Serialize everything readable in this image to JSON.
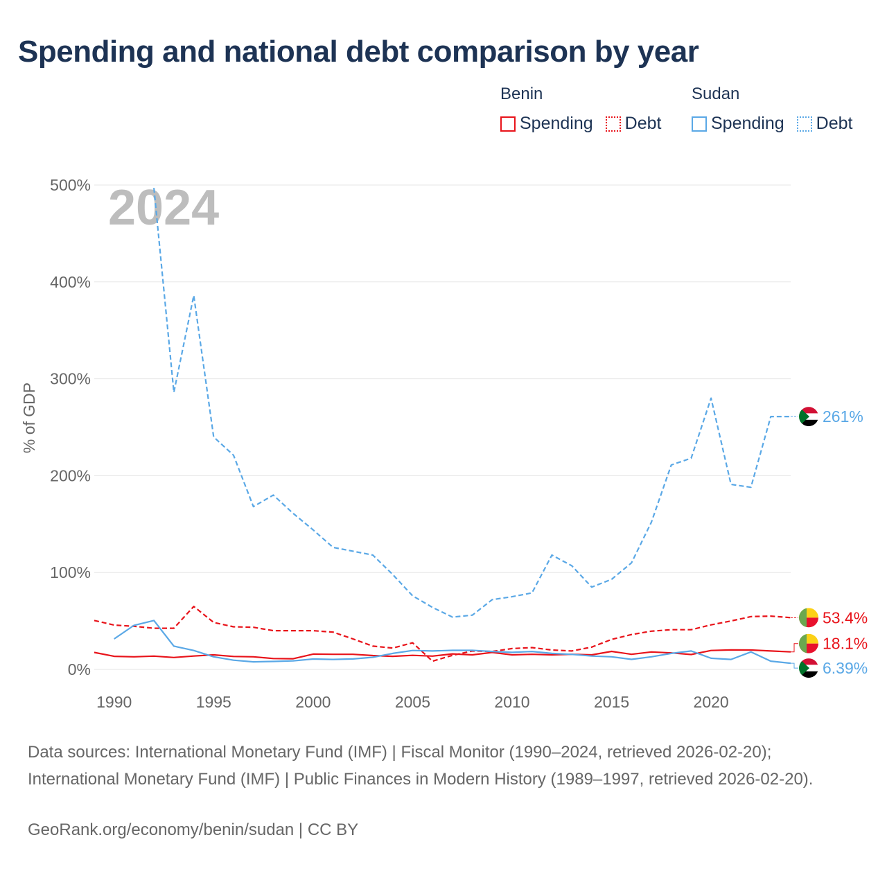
{
  "title": "Spending and national debt comparison by year",
  "legend": {
    "groups": [
      {
        "name": "Benin",
        "items": [
          {
            "label": "Spending",
            "style": "solid",
            "color": "#e8131a"
          },
          {
            "label": "Debt",
            "style": "dotted",
            "color": "#e8131a"
          }
        ]
      },
      {
        "name": "Sudan",
        "items": [
          {
            "label": "Spending",
            "style": "solid",
            "color": "#5aa8e6"
          },
          {
            "label": "Debt",
            "style": "dotted",
            "color": "#5aa8e6"
          }
        ]
      }
    ]
  },
  "chart_data": {
    "type": "line",
    "year_watermark": "2024",
    "ylabel": "% of GDP",
    "xlabel": "",
    "ylim": [
      0,
      500
    ],
    "xlim": [
      1989,
      2024
    ],
    "yticks": [
      0,
      100,
      200,
      300,
      400,
      500
    ],
    "ytick_labels": [
      "0%",
      "100%",
      "200%",
      "300%",
      "400%",
      "500%"
    ],
    "xticks": [
      1990,
      1995,
      2000,
      2005,
      2010,
      2015,
      2020
    ],
    "xtick_labels": [
      "1990",
      "1995",
      "2000",
      "2005",
      "2010",
      "2015",
      "2020"
    ],
    "grid": true,
    "series": [
      {
        "name": "Benin Spending",
        "country": "Benin",
        "metric": "Spending",
        "color": "#e8131a",
        "dash": "solid",
        "end_label": "18.1%",
        "points": [
          [
            1989,
            17.5
          ],
          [
            1990,
            13.5
          ],
          [
            1991,
            13
          ],
          [
            1992,
            13.7
          ],
          [
            1993,
            12.3
          ],
          [
            1994,
            13.8
          ],
          [
            1995,
            15
          ],
          [
            1996,
            13.4
          ],
          [
            1997,
            13
          ],
          [
            1998,
            11.2
          ],
          [
            1999,
            11
          ],
          [
            2000,
            15.8
          ],
          [
            2001,
            15.6
          ],
          [
            2002,
            15.6
          ],
          [
            2003,
            14.3
          ],
          [
            2004,
            13.5
          ],
          [
            2005,
            14.5
          ],
          [
            2006,
            13.7
          ],
          [
            2007,
            16
          ],
          [
            2008,
            15
          ],
          [
            2009,
            17.5
          ],
          [
            2010,
            15
          ],
          [
            2011,
            15.6
          ],
          [
            2012,
            15
          ],
          [
            2013,
            15.6
          ],
          [
            2014,
            15
          ],
          [
            2015,
            18.6
          ],
          [
            2016,
            15.6
          ],
          [
            2017,
            18
          ],
          [
            2018,
            17
          ],
          [
            2019,
            15.4
          ],
          [
            2020,
            19.5
          ],
          [
            2021,
            20.1
          ],
          [
            2022,
            20
          ],
          [
            2023,
            19
          ],
          [
            2024,
            18.1
          ]
        ]
      },
      {
        "name": "Benin Debt",
        "country": "Benin",
        "metric": "Debt",
        "color": "#e8131a",
        "dash": "dashed",
        "end_label": "53.4%",
        "points": [
          [
            1989,
            50.5
          ],
          [
            1990,
            45.8
          ],
          [
            1991,
            44.5
          ],
          [
            1992,
            42.5
          ],
          [
            1993,
            42.5
          ],
          [
            1994,
            65
          ],
          [
            1995,
            48.5
          ],
          [
            1996,
            44
          ],
          [
            1997,
            43.5
          ],
          [
            1998,
            40
          ],
          [
            1999,
            40
          ],
          [
            2000,
            40
          ],
          [
            2001,
            38.5
          ],
          [
            2002,
            31.5
          ],
          [
            2003,
            24
          ],
          [
            2004,
            22
          ],
          [
            2005,
            27.5
          ],
          [
            2006,
            8.5
          ],
          [
            2007,
            14.5
          ],
          [
            2008,
            19
          ],
          [
            2009,
            18.5
          ],
          [
            2010,
            21.5
          ],
          [
            2011,
            22.5
          ],
          [
            2012,
            20
          ],
          [
            2013,
            19
          ],
          [
            2014,
            23
          ],
          [
            2015,
            31
          ],
          [
            2016,
            36
          ],
          [
            2017,
            39.5
          ],
          [
            2018,
            41
          ],
          [
            2019,
            41
          ],
          [
            2020,
            46
          ],
          [
            2021,
            50
          ],
          [
            2022,
            54.5
          ],
          [
            2023,
            55
          ],
          [
            2024,
            53.4
          ]
        ]
      },
      {
        "name": "Sudan Spending",
        "country": "Sudan",
        "metric": "Spending",
        "color": "#5aa8e6",
        "dash": "solid",
        "end_label": "6.39%",
        "points": [
          [
            1990,
            31.5
          ],
          [
            1991,
            45.5
          ],
          [
            1992,
            50.5
          ],
          [
            1993,
            24
          ],
          [
            1994,
            19.5
          ],
          [
            1995,
            13
          ],
          [
            1996,
            9.5
          ],
          [
            1997,
            7.8
          ],
          [
            1998,
            8.2
          ],
          [
            1999,
            8.8
          ],
          [
            2000,
            10.7
          ],
          [
            2001,
            10.3
          ],
          [
            2002,
            10.8
          ],
          [
            2003,
            12.5
          ],
          [
            2004,
            16.5
          ],
          [
            2005,
            19.5
          ],
          [
            2006,
            19
          ],
          [
            2007,
            19.7
          ],
          [
            2008,
            19.7
          ],
          [
            2009,
            18.5
          ],
          [
            2010,
            17.6
          ],
          [
            2011,
            18.5
          ],
          [
            2012,
            16.5
          ],
          [
            2013,
            15.5
          ],
          [
            2014,
            13.8
          ],
          [
            2015,
            13
          ],
          [
            2016,
            10.4
          ],
          [
            2017,
            13
          ],
          [
            2018,
            16.5
          ],
          [
            2019,
            19
          ],
          [
            2020,
            11.5
          ],
          [
            2021,
            10.3
          ],
          [
            2022,
            18
          ],
          [
            2023,
            8.5
          ],
          [
            2024,
            6.39
          ]
        ]
      },
      {
        "name": "Sudan Debt",
        "country": "Sudan",
        "metric": "Debt",
        "color": "#5aa8e6",
        "dash": "dashed",
        "end_label": "261%",
        "points": [
          [
            1992,
            497
          ],
          [
            1993,
            286
          ],
          [
            1994,
            386
          ],
          [
            1995,
            240
          ],
          [
            1996,
            221
          ],
          [
            1997,
            168
          ],
          [
            1998,
            180
          ],
          [
            1999,
            161
          ],
          [
            2000,
            144
          ],
          [
            2001,
            126
          ],
          [
            2002,
            122
          ],
          [
            2003,
            118
          ],
          [
            2004,
            98
          ],
          [
            2005,
            76
          ],
          [
            2006,
            64
          ],
          [
            2007,
            54
          ],
          [
            2008,
            56
          ],
          [
            2009,
            72
          ],
          [
            2010,
            75
          ],
          [
            2011,
            79
          ],
          [
            2012,
            118
          ],
          [
            2013,
            107
          ],
          [
            2014,
            85
          ],
          [
            2015,
            93
          ],
          [
            2016,
            110
          ],
          [
            2017,
            152
          ],
          [
            2018,
            211
          ],
          [
            2019,
            218
          ],
          [
            2020,
            280
          ],
          [
            2021,
            191
          ],
          [
            2022,
            188
          ],
          [
            2023,
            261
          ],
          [
            2024,
            261
          ]
        ]
      }
    ]
  },
  "source_text": "Data sources: International Monetary Fund (IMF) | Fiscal Monitor (1990–2024, retrieved 2026-02-20); International Monetary Fund (IMF) | Public Finances in Modern History (1989–1997, retrieved 2026-02-20).",
  "credit_text": "GeoRank.org/economy/benin/sudan | CC BY"
}
